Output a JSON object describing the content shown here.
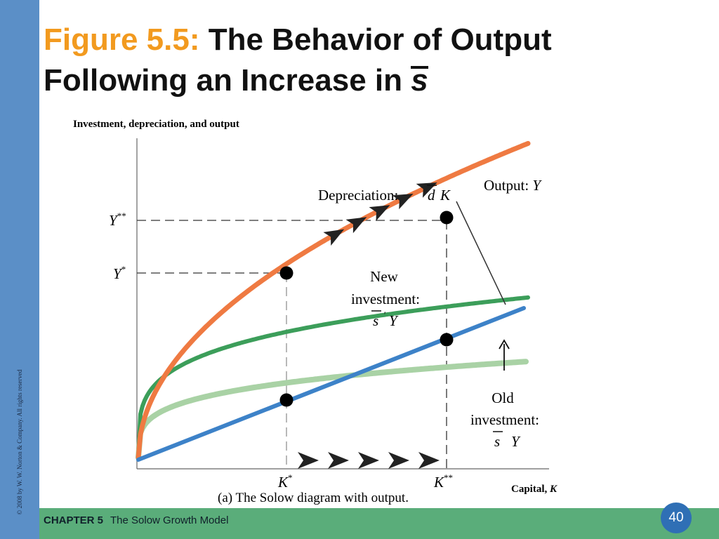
{
  "slide": {
    "figure_label": "Figure 5.5:",
    "title_line1": "The Behavior of Output",
    "title_line2": "Following an Increase in",
    "title_var": "s",
    "copyright": "© 2008 by W. W. Norton & Company. All rights reserved",
    "chapter_label": "CHAPTER 5",
    "chapter_title": "The Solow Growth Model",
    "page_number": "40"
  },
  "diagram": {
    "y_axis_label": "Investment, depreciation,  and output",
    "x_axis_label": "Capital,",
    "x_axis_var": "K",
    "caption": "(a) The Solow diagram with output.",
    "output_label": "Output:",
    "output_var": "Y",
    "depreciation_label": "Depreciation:",
    "depreciation_d": "d",
    "depreciation_k": "K",
    "new_investment_line1": "New",
    "new_investment_line2": "investment:",
    "new_investment_s": "s",
    "new_investment_prime": "'",
    "new_investment_y": "Y",
    "old_investment_line1": "Old",
    "old_investment_line2": "investment:",
    "old_investment_s": "s",
    "old_investment_y": "Y",
    "y_star": "Y",
    "y_star_sup": "*",
    "y_starstar": "Y",
    "y_starstar_sup": "**",
    "k_star": "K",
    "k_star_sup": "*",
    "k_starstar": "K",
    "k_starstar_sup": "**",
    "colors": {
      "output": "#ef7a42",
      "depreciation": "#3d82c8",
      "new_investment": "#3c9e5a",
      "old_investment": "#a9d2a5",
      "arrow": "#222222"
    }
  }
}
